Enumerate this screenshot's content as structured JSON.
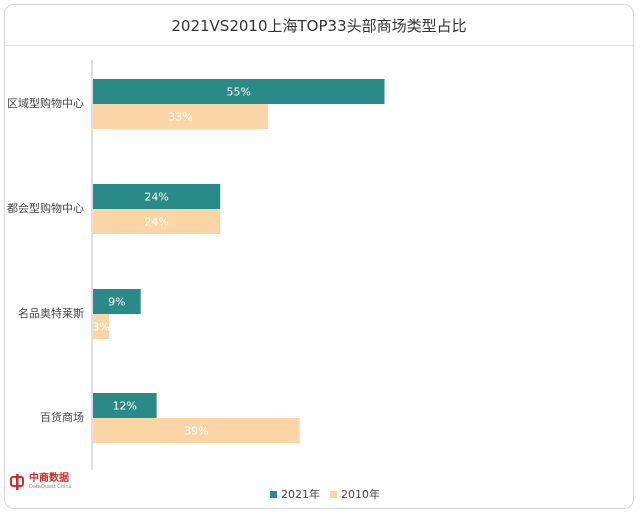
{
  "chart_data": {
    "type": "bar",
    "orientation": "horizontal",
    "title": "2021VS2010上海TOP33头部商场类型占比",
    "categories": [
      "区域型购物中心",
      "都会型购物中心",
      "名品奥特莱斯",
      "百货商场"
    ],
    "series": [
      {
        "name": "2021年",
        "values": [
          55,
          24,
          9,
          12
        ],
        "labels": [
          "55%",
          "24%",
          "9%",
          "12%"
        ],
        "color": "#2a8a87"
      },
      {
        "name": "2010年",
        "values": [
          33,
          24,
          3,
          39
        ],
        "labels": [
          "33%",
          "24%",
          "3%",
          "39%"
        ],
        "color": "#fbd5a6"
      }
    ],
    "xlim": [
      0,
      100
    ],
    "grid": false,
    "legend_position": "bottom-center"
  },
  "logo": {
    "cn": "中商数据",
    "en": "DataQuest China"
  }
}
